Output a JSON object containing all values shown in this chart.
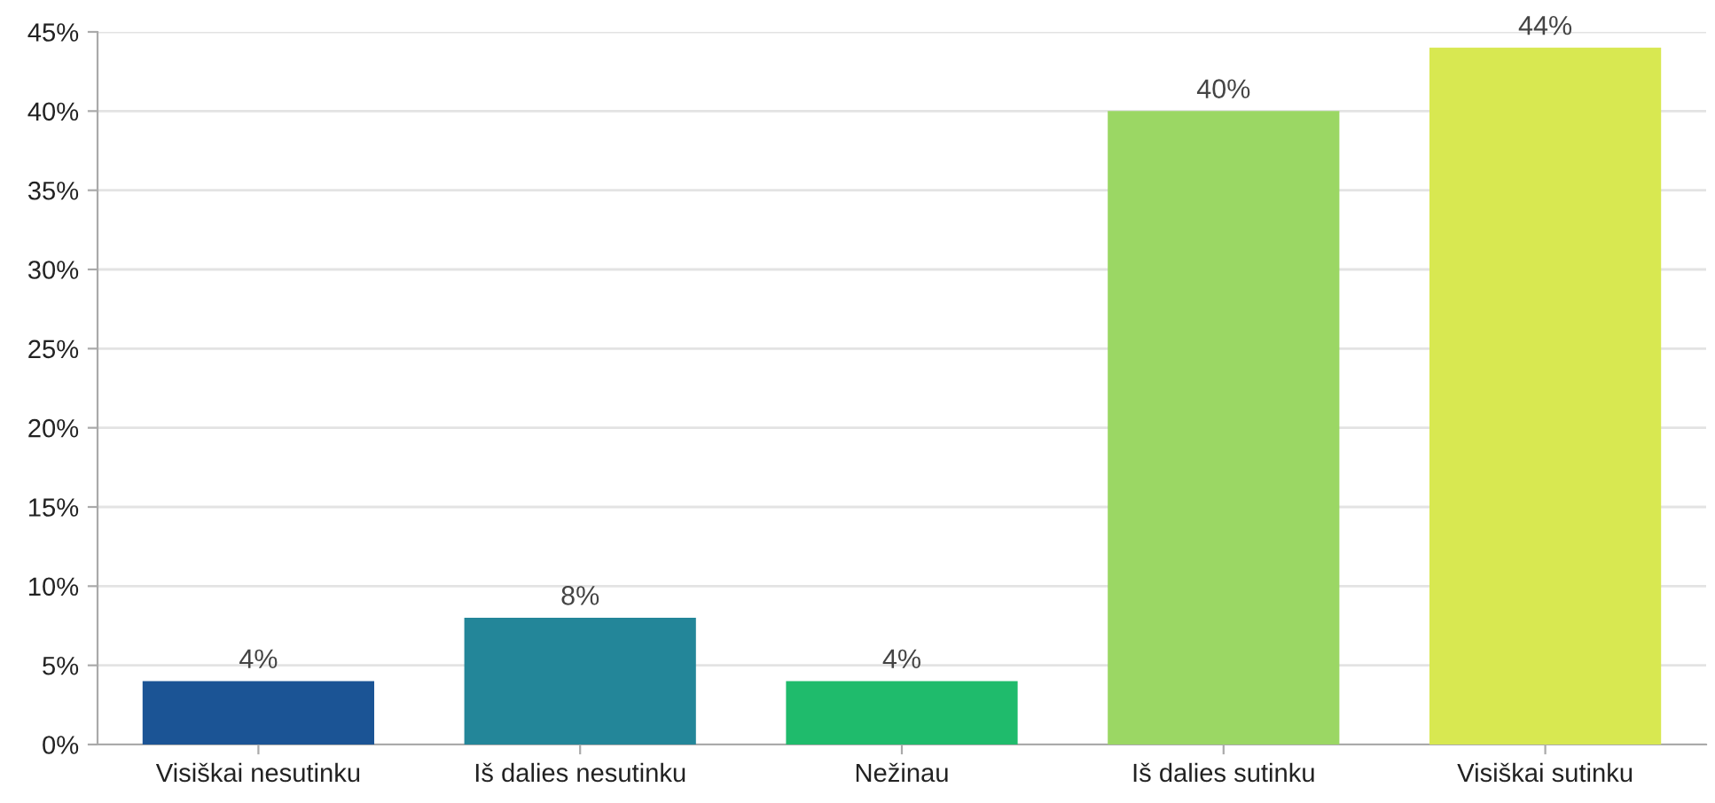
{
  "chart_data": {
    "type": "bar",
    "categories": [
      "Visiškai nesutinku",
      "Iš dalies nesutinku",
      "Nežinau",
      "Iš dalies sutinku",
      "Visiškai sutinku"
    ],
    "values": [
      4,
      8,
      4,
      40,
      44
    ],
    "colors": [
      "#1b5495",
      "#238699",
      "#1fbb6c",
      "#9bd764",
      "#d8e851"
    ],
    "value_labels": [
      "4%",
      "8%",
      "4%",
      "40%",
      "44%"
    ],
    "ylim": [
      0,
      45
    ],
    "yticks": [
      {
        "value": 0,
        "label": "0%"
      },
      {
        "value": 5,
        "label": "5%"
      },
      {
        "value": 10,
        "label": "10%"
      },
      {
        "value": 15,
        "label": "15%"
      },
      {
        "value": 20,
        "label": "20%"
      },
      {
        "value": 25,
        "label": "25%"
      },
      {
        "value": 30,
        "label": "30%"
      },
      {
        "value": 35,
        "label": "35%"
      },
      {
        "value": 40,
        "label": "40%"
      },
      {
        "value": 45,
        "label": "45%"
      }
    ],
    "grid": "y"
  }
}
